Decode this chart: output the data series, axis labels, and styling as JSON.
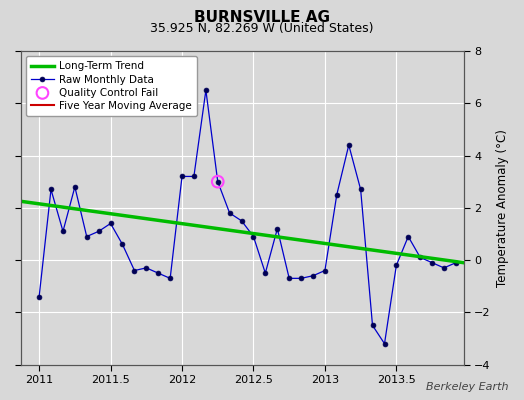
{
  "title": "BURNSVILLE AG",
  "subtitle": "35.925 N, 82.269 W (United States)",
  "ylabel": "Temperature Anomaly (°C)",
  "watermark": "Berkeley Earth",
  "xlim": [
    2010.87,
    2013.97
  ],
  "ylim": [
    -4,
    8
  ],
  "xticks": [
    2011,
    2011.5,
    2012,
    2012.5,
    2013,
    2013.5
  ],
  "yticks": [
    -4,
    -2,
    0,
    2,
    4,
    6,
    8
  ],
  "background_color": "#d8d8d8",
  "plot_background": "#d8d8d8",
  "raw_data_x": [
    2011.0,
    2011.083,
    2011.167,
    2011.25,
    2011.333,
    2011.417,
    2011.5,
    2011.583,
    2011.667,
    2011.75,
    2011.833,
    2011.917,
    2012.0,
    2012.083,
    2012.167,
    2012.25,
    2012.333,
    2012.417,
    2012.5,
    2012.583,
    2012.667,
    2012.75,
    2012.833,
    2012.917,
    2013.0,
    2013.083,
    2013.167,
    2013.25,
    2013.333,
    2013.417,
    2013.5,
    2013.583,
    2013.667,
    2013.75,
    2013.833,
    2013.917
  ],
  "raw_data_y": [
    -1.4,
    2.7,
    1.1,
    2.8,
    0.9,
    1.1,
    1.4,
    0.6,
    -0.4,
    -0.3,
    -0.5,
    -0.7,
    3.2,
    3.2,
    6.5,
    3.0,
    1.8,
    1.5,
    0.9,
    -0.5,
    1.2,
    -0.7,
    -0.7,
    -0.6,
    -0.4,
    2.5,
    4.4,
    2.7,
    -2.5,
    -3.2,
    -0.2,
    0.9,
    0.1,
    -0.1,
    -0.3,
    -0.1
  ],
  "qc_fail_x": [
    2012.25
  ],
  "qc_fail_y": [
    3.0
  ],
  "trend_x": [
    2010.87,
    2013.97
  ],
  "trend_y": [
    2.25,
    -0.1
  ],
  "raw_line_color": "#0000cc",
  "raw_marker_color": "#000055",
  "qc_color": "#ff44ff",
  "trend_color": "#00bb00",
  "ma_color": "#cc0000",
  "grid_color": "#ffffff",
  "legend_bg": "#ffffff"
}
